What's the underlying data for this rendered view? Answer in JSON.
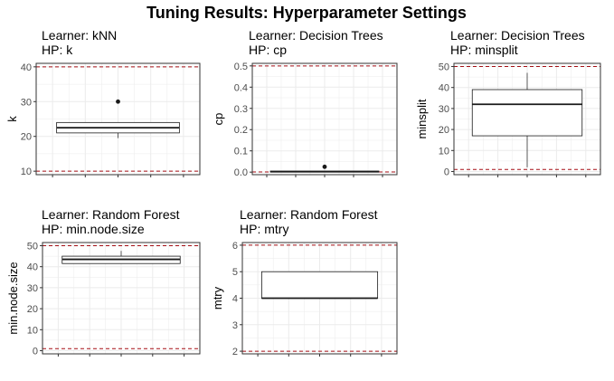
{
  "chart_data": {
    "type": "boxplot",
    "title": "Tuning Results: Hyperparameter Settings",
    "grid": true,
    "colors": {
      "background": "#ffffff",
      "panel_border": "#333333",
      "grid": "#ebebeb",
      "box_line": "#1a1a1a",
      "reference_line": "#a50f15",
      "tick_text": "#4d4d4d"
    },
    "panels": [
      {
        "learner_label": "Learner: kNN",
        "hp_label": "HP: k",
        "ylabel": "k",
        "ylim": [
          9,
          41
        ],
        "yticks": [
          10,
          20,
          30,
          40
        ],
        "reference_lines": [
          10,
          40
        ],
        "box": {
          "whisker_low": 19.5,
          "q1": 21,
          "median": 22.5,
          "q3": 24,
          "whisker_high": 24
        },
        "outliers": [
          30
        ]
      },
      {
        "learner_label": "Learner: Decision Trees",
        "hp_label": "HP: cp",
        "ylabel": "cp",
        "ylim": [
          -0.012,
          0.512
        ],
        "yticks": [
          0.0,
          0.1,
          0.2,
          0.3,
          0.4,
          0.5
        ],
        "ytick_labels": [
          "0.0",
          "0.1",
          "0.2",
          "0.3",
          "0.4",
          "0.5"
        ],
        "reference_lines": [
          0.001,
          0.5
        ],
        "box": {
          "whisker_low": 0.001,
          "q1": 0.001,
          "median": 0.002,
          "q3": 0.005,
          "whisker_high": 0.006
        },
        "outliers": [
          0.025
        ]
      },
      {
        "learner_label": "Learner: Decision Trees",
        "hp_label": "HP: minsplit",
        "ylabel": "minsplit",
        "ylim": [
          -1.5,
          51.5
        ],
        "yticks": [
          0,
          10,
          20,
          30,
          40,
          50
        ],
        "reference_lines": [
          1,
          50
        ],
        "box": {
          "whisker_low": 2,
          "q1": 17,
          "median": 32,
          "q3": 39,
          "whisker_high": 47
        },
        "outliers": []
      },
      {
        "learner_label": "Learner: Random Forest",
        "hp_label": "HP: min.node.size",
        "ylabel": "min.node.size",
        "ylim": [
          -1.5,
          51.5
        ],
        "yticks": [
          0,
          10,
          20,
          30,
          40,
          50
        ],
        "reference_lines": [
          1,
          50
        ],
        "box": {
          "whisker_low": 41.5,
          "q1": 41.5,
          "median": 43.5,
          "q3": 45,
          "whisker_high": 47.5
        },
        "outliers": []
      },
      {
        "learner_label": "Learner: Random Forest",
        "hp_label": "HP: mtry",
        "ylabel": "mtry",
        "ylim": [
          1.9,
          6.1
        ],
        "yticks": [
          2,
          3,
          4,
          5,
          6
        ],
        "reference_lines": [
          2,
          6
        ],
        "box": {
          "whisker_low": 4,
          "q1": 4,
          "median": 4,
          "q3": 5,
          "whisker_high": 5
        },
        "outliers": []
      }
    ]
  }
}
